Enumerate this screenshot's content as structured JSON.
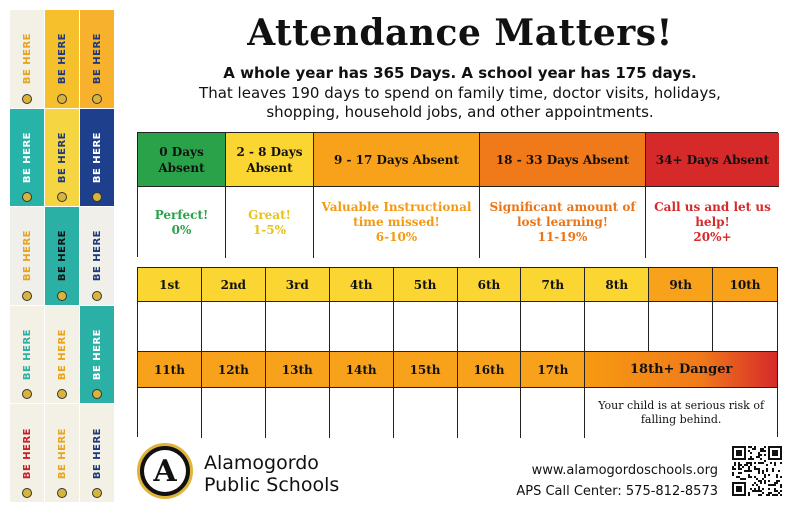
{
  "title": "Attendance Matters!",
  "subtitle_bold": "A whole year has 365 Days. A school year has 175 days.",
  "subtitle_line2": "That leaves 190 days to spend on family time, doctor visits, holidays,",
  "subtitle_line3": "shopping, household jobs, and other appointments.",
  "categories": [
    {
      "header": "0 Days Absent",
      "label": "Perfect!",
      "percent": "0%",
      "head_bg": "#2aa24a",
      "text_color": "#2aa24a"
    },
    {
      "header": "2 - 8 Days Absent",
      "label": "Great!",
      "percent": "1-5%",
      "head_bg": "#fbd531",
      "text_color": "#e8c21a"
    },
    {
      "header": "9 - 17 Days Absent",
      "label": "Valuable Instructional time missed!",
      "percent": "6-10%",
      "head_bg": "#f8a21b",
      "text_color": "#f39a12"
    },
    {
      "header": "18 - 33 Days Absent",
      "label": "Significant amount of lost learning!",
      "percent": "11-19%",
      "head_bg": "#f07a1a",
      "text_color": "#ea7416"
    },
    {
      "header": "34+ Days Absent",
      "label": "Call us and let us help!",
      "percent": "20%+",
      "head_bg": "#d62a2a",
      "text_color": "#d62a2a"
    }
  ],
  "days_row1": [
    {
      "label": "1st",
      "bg": "#fbd531"
    },
    {
      "label": "2nd",
      "bg": "#fbd531"
    },
    {
      "label": "3rd",
      "bg": "#fbd531"
    },
    {
      "label": "4th",
      "bg": "#fbd531"
    },
    {
      "label": "5th",
      "bg": "#fbd531"
    },
    {
      "label": "6th",
      "bg": "#fbd531"
    },
    {
      "label": "7th",
      "bg": "#fbd531"
    },
    {
      "label": "8th",
      "bg": "#fbd531"
    },
    {
      "label": "9th",
      "bg": "#f8a21b"
    },
    {
      "label": "10th",
      "bg": "#f8a21b"
    }
  ],
  "days_row2": [
    {
      "label": "11th",
      "bg": "#f8a21b"
    },
    {
      "label": "12th",
      "bg": "#f8a21b"
    },
    {
      "label": "13th",
      "bg": "#f8a21b"
    },
    {
      "label": "14th",
      "bg": "#f8a21b"
    },
    {
      "label": "15th",
      "bg": "#f8a21b"
    },
    {
      "label": "16th",
      "bg": "#f8a21b"
    },
    {
      "label": "17th",
      "bg": "#f8a21b"
    }
  ],
  "danger": {
    "header": "18th+ Danger",
    "message": "Your child is at serious risk of falling behind."
  },
  "school": {
    "line1": "Alamogordo",
    "line2": "Public Schools",
    "logo_letter": "A"
  },
  "contact": {
    "website": "www.alamogordoschools.org",
    "call_center": "APS Call Center: 575-812-8573"
  },
  "side_tiles": [
    {
      "text": "BE HERE",
      "bg": "#f3f0e6",
      "color": "#e8a41c"
    },
    {
      "text": "BE HERE",
      "bg": "#f5c02b",
      "color": "#1f3a7a"
    },
    {
      "text": "BE HERE",
      "bg": "#f7b12c",
      "color": "#1f3a7a"
    },
    {
      "text": "BE HERE",
      "bg": "#27b3a8",
      "color": "#ffffff"
    },
    {
      "text": "BE HERE",
      "bg": "#f5d542",
      "color": "#1f3a7a"
    },
    {
      "text": "BE HERE",
      "bg": "#1d3f8c",
      "color": "#ffffff"
    },
    {
      "text": "BE HERE",
      "bg": "#f0efe9",
      "color": "#e8a41c"
    },
    {
      "text": "BE HERE",
      "bg": "#2ab0a5",
      "color": "#111111"
    },
    {
      "text": "BE HERE",
      "bg": "#f0efe9",
      "color": "#1f3a7a"
    },
    {
      "text": "BE HERE",
      "bg": "#f3f0e6",
      "color": "#2ab0a5"
    },
    {
      "text": "BE HERE",
      "bg": "#f3f0e6",
      "color": "#e8a41c"
    },
    {
      "text": "BE HERE",
      "bg": "#2ab0a5",
      "color": "#ffffff"
    },
    {
      "text": "BE HERE",
      "bg": "#f3f0e6",
      "color": "#c8202a"
    },
    {
      "text": "BE HERE",
      "bg": "#f3f0e6",
      "color": "#e8a41c"
    },
    {
      "text": "BE HERE",
      "bg": "#f3f0e6",
      "color": "#1f3a7a"
    }
  ]
}
